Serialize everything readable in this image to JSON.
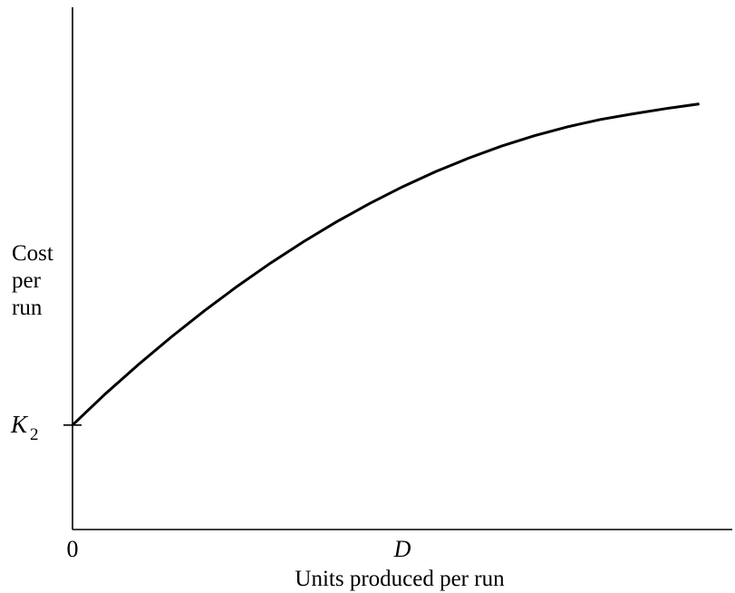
{
  "chart_data": {
    "type": "line",
    "title": "",
    "xlabel": "Units produced per run",
    "ylabel_lines": [
      "Cost",
      "per",
      "run"
    ],
    "x_tick_labels": [
      {
        "label": "0",
        "x": 0
      },
      {
        "label": "D",
        "x": 0.5
      }
    ],
    "y_tick_labels": [
      {
        "label": "K",
        "subscript": "2",
        "y": 0.2
      }
    ],
    "xlim": [
      0,
      1.0
    ],
    "ylim": [
      0,
      1.0
    ],
    "grid": false,
    "series": [
      {
        "x": [
          0,
          0.05,
          0.1,
          0.15,
          0.2,
          0.25,
          0.3,
          0.35,
          0.4,
          0.45,
          0.5,
          0.55,
          0.6,
          0.65,
          0.7,
          0.75,
          0.8,
          0.85,
          0.9,
          0.95
        ],
        "y": [
          0.2,
          0.26,
          0.316,
          0.369,
          0.419,
          0.466,
          0.51,
          0.551,
          0.589,
          0.624,
          0.656,
          0.685,
          0.711,
          0.734,
          0.754,
          0.771,
          0.785,
          0.796,
          0.806,
          0.815
        ],
        "color": "#000000"
      }
    ]
  }
}
